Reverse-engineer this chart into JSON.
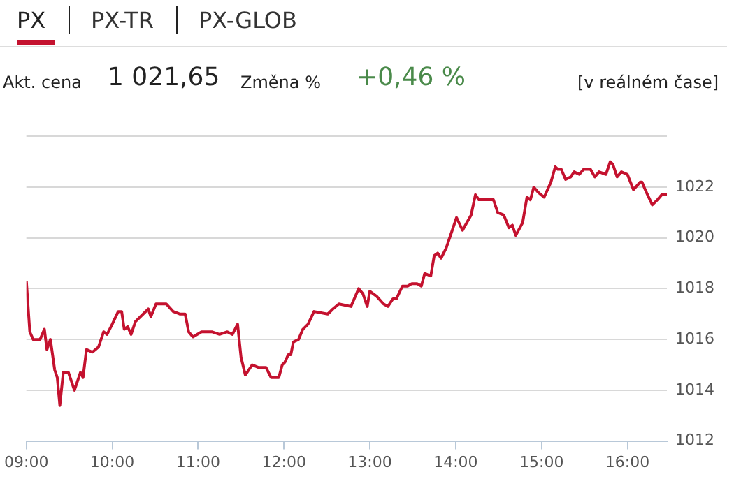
{
  "chart_data": {
    "type": "line",
    "title": "PX",
    "annotations": [
      "PX-TR",
      "PX-GLOB",
      "Akt. cena",
      "1 021,65",
      "Změna %",
      "+0,46 %",
      "[v reálném čase]"
    ],
    "x": [
      9.0,
      9.04,
      9.08,
      9.16,
      9.21,
      9.24,
      9.28,
      9.33,
      9.36,
      9.39,
      9.43,
      9.49,
      9.56,
      9.63,
      9.66,
      9.7,
      9.77,
      9.84,
      9.9,
      9.94,
      10.0,
      10.07,
      10.11,
      10.14,
      10.18,
      10.22,
      10.27,
      10.36,
      10.42,
      10.45,
      10.51,
      10.63,
      10.71,
      10.79,
      10.85,
      10.89,
      10.94,
      11.04,
      11.16,
      11.25,
      11.34,
      11.4,
      11.46,
      11.5,
      11.55,
      11.63,
      11.7,
      11.79,
      11.85,
      11.94,
      11.98,
      12.01,
      12.05,
      12.08,
      12.11,
      12.17,
      12.22,
      12.28,
      12.35,
      12.51,
      12.57,
      12.64,
      12.78,
      12.87,
      12.92,
      12.97,
      13.0,
      13.08,
      13.16,
      13.21,
      13.27,
      13.31,
      13.38,
      13.44,
      13.49,
      13.55,
      13.6,
      13.64,
      13.71,
      13.75,
      13.79,
      13.83,
      13.89,
      13.96,
      14.01,
      14.08,
      14.13,
      14.18,
      14.23,
      14.27,
      14.31,
      14.37,
      14.44,
      14.49,
      14.56,
      14.62,
      14.66,
      14.7,
      14.78,
      14.83,
      14.87,
      14.91,
      14.96,
      15.03,
      15.11,
      15.16,
      15.19,
      15.23,
      15.28,
      15.34,
      15.38,
      15.44,
      15.49,
      15.57,
      15.62,
      15.67,
      15.75,
      15.8,
      15.83,
      15.88,
      15.93,
      16.0,
      16.07,
      16.15,
      16.17,
      16.22,
      16.29,
      16.35,
      16.4,
      16.46
    ],
    "series": [
      {
        "color": "#c4122f",
        "values": [
          1018.3,
          1016.3,
          1016.0,
          1016.0,
          1016.4,
          1015.6,
          1016.0,
          1014.8,
          1014.5,
          1013.4,
          1014.7,
          1014.7,
          1014.0,
          1014.7,
          1014.5,
          1015.6,
          1015.5,
          1015.7,
          1016.3,
          1016.2,
          1016.6,
          1017.1,
          1017.1,
          1016.4,
          1016.5,
          1016.2,
          1016.7,
          1017.0,
          1017.2,
          1016.9,
          1017.4,
          1017.4,
          1017.1,
          1017.0,
          1017.0,
          1016.3,
          1016.1,
          1016.3,
          1016.3,
          1016.2,
          1016.3,
          1016.2,
          1016.6,
          1015.3,
          1014.6,
          1015.0,
          1014.9,
          1014.9,
          1014.5,
          1014.5,
          1015.0,
          1015.1,
          1015.4,
          1015.4,
          1015.9,
          1016.0,
          1016.4,
          1016.6,
          1017.1,
          1017.0,
          1017.2,
          1017.4,
          1017.3,
          1018.0,
          1017.8,
          1017.3,
          1017.9,
          1017.7,
          1017.4,
          1017.3,
          1017.6,
          1017.6,
          1018.1,
          1018.1,
          1018.2,
          1018.2,
          1018.1,
          1018.6,
          1018.5,
          1019.3,
          1019.4,
          1019.2,
          1019.6,
          1020.3,
          1020.8,
          1020.3,
          1020.6,
          1020.9,
          1021.7,
          1021.5,
          1021.5,
          1021.5,
          1021.5,
          1021.0,
          1020.9,
          1020.4,
          1020.5,
          1020.1,
          1020.6,
          1021.6,
          1021.5,
          1022.0,
          1021.8,
          1021.6,
          1022.2,
          1022.8,
          1022.7,
          1022.7,
          1022.3,
          1022.4,
          1022.6,
          1022.5,
          1022.7,
          1022.7,
          1022.4,
          1022.6,
          1022.5,
          1023.0,
          1022.9,
          1022.4,
          1022.6,
          1022.5,
          1021.9,
          1022.2,
          1022.2,
          1021.8,
          1021.3,
          1021.5,
          1021.7,
          1021.7
        ]
      }
    ],
    "xlim": [
      9,
      16.46
    ],
    "xticks": [
      {
        "value": 9,
        "label": "09:00"
      },
      {
        "value": 10,
        "label": "10:00"
      },
      {
        "value": 11,
        "label": "11:00"
      },
      {
        "value": 12,
        "label": "12:00"
      },
      {
        "value": 13,
        "label": "13:00"
      },
      {
        "value": 14,
        "label": "14:00"
      },
      {
        "value": 15,
        "label": "15:00"
      },
      {
        "value": 16,
        "label": "16:00"
      }
    ],
    "ylim": [
      1012,
      1024
    ],
    "yticks": [
      1012,
      1014,
      1016,
      1018,
      1020,
      1022,
      {
        "value": 1024,
        "label": null
      }
    ],
    "grid": "y",
    "legend": false,
    "marker": "none",
    "line_style": "solid"
  }
}
